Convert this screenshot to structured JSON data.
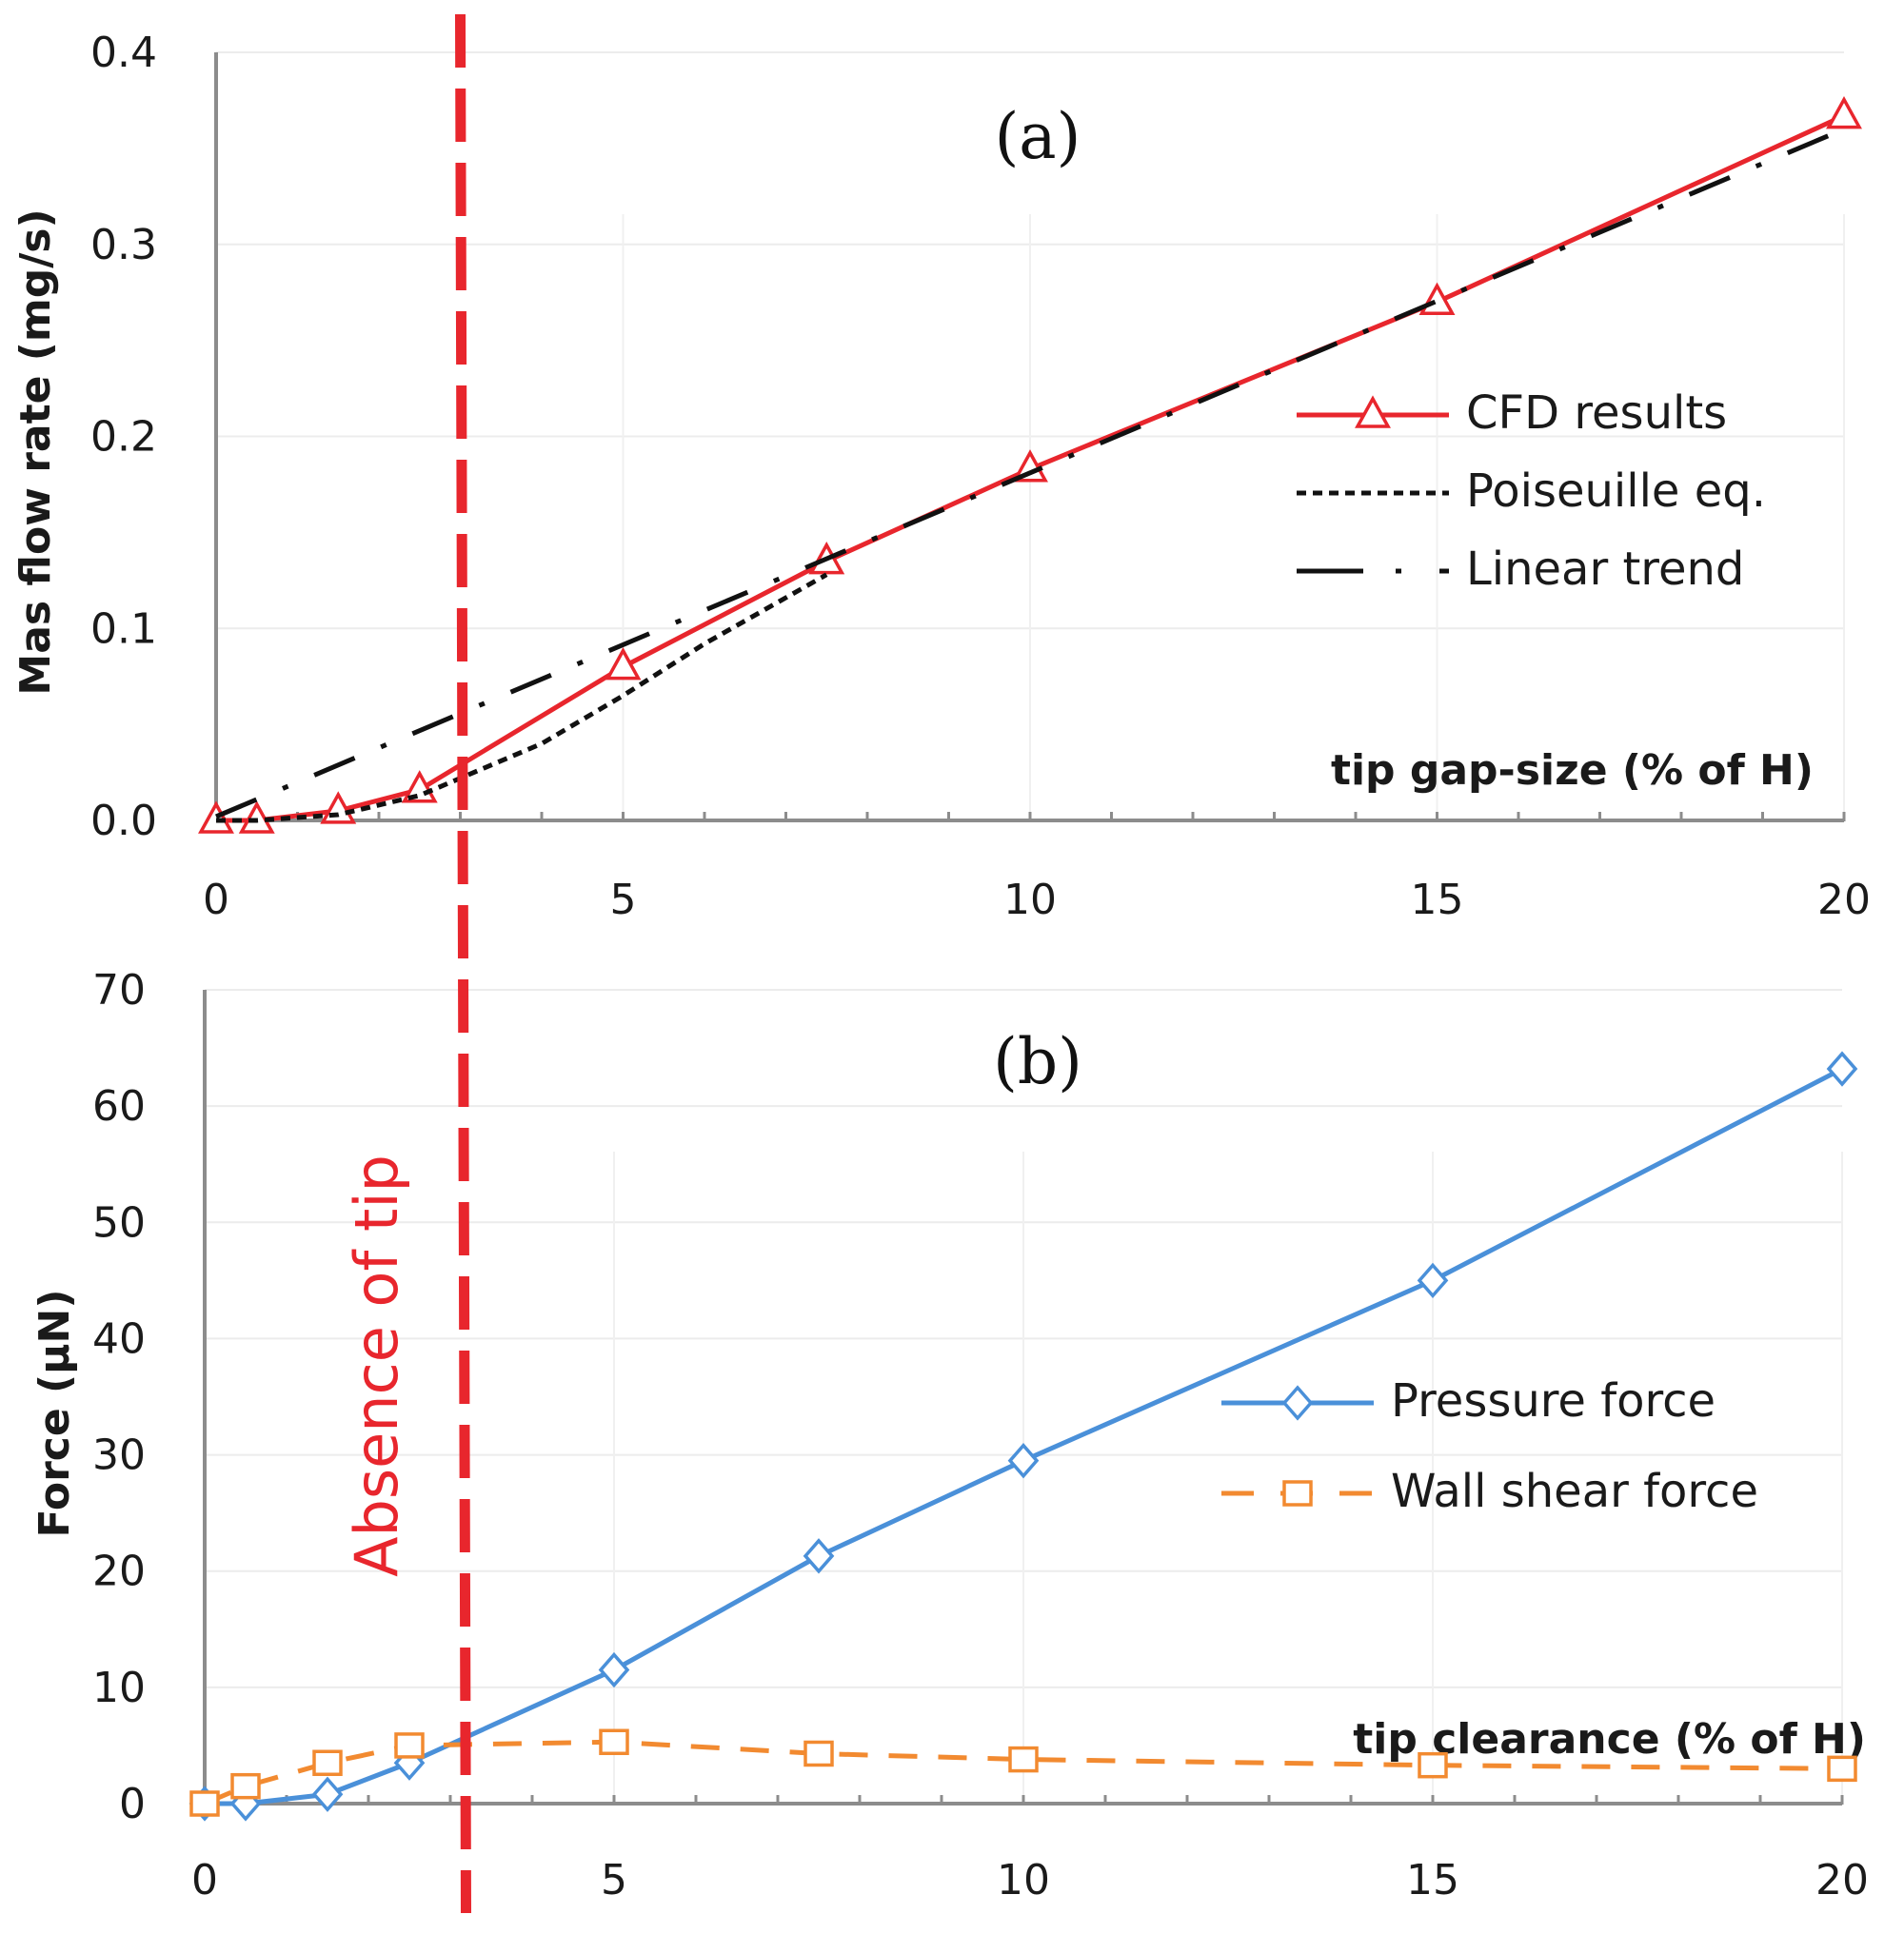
{
  "figure": {
    "absence_label": "Absence of tip",
    "absence_x": 3.0,
    "absence_color": "#e8262d"
  },
  "chart_data": [
    {
      "type": "line",
      "panel_label": "(a)",
      "title": "",
      "xlabel": "tip gap-size (% of H)",
      "ylabel": "Mas flow rate (mg/s)",
      "xlim": [
        0,
        20
      ],
      "ylim": [
        0,
        0.4
      ],
      "x_ticks": [
        0,
        5,
        10,
        15,
        20
      ],
      "x_tick_labels": [
        "0",
        "5",
        "10",
        "15",
        "20"
      ],
      "y_ticks": [
        0,
        0.1,
        0.2,
        0.3,
        0.4
      ],
      "y_tick_labels": [
        "0.0",
        "0.1",
        "0.2",
        "0.3",
        "0.4"
      ],
      "grid": true,
      "legend_position": "right",
      "series": [
        {
          "name": "CFD results",
          "color": "#e8262d",
          "style": "solid",
          "marker": "triangle",
          "x": [
            0,
            0.5,
            1.5,
            2.5,
            5,
            7.5,
            10,
            15,
            20
          ],
          "y": [
            0.0,
            0.0,
            0.005,
            0.016,
            0.08,
            0.135,
            0.183,
            0.27,
            0.367
          ]
        },
        {
          "name": "Poiseuille eq.",
          "color": "#111111",
          "style": "dotted",
          "marker": "none",
          "x": [
            0,
            0.5,
            1.5,
            2.5,
            3,
            4,
            5,
            6,
            7.5
          ],
          "y": [
            0.0,
            0.0,
            0.003,
            0.013,
            0.022,
            0.04,
            0.065,
            0.092,
            0.128
          ]
        },
        {
          "name": "Linear trend",
          "color": "#111111",
          "style": "dashdot",
          "marker": "none",
          "x": [
            0,
            20
          ],
          "y": [
            0.002,
            0.36
          ]
        }
      ]
    },
    {
      "type": "line",
      "panel_label": "(b)",
      "title": "",
      "xlabel": "tip clearance (% of H)",
      "ylabel": "Force (μN)",
      "xlim": [
        0,
        20
      ],
      "ylim": [
        0,
        70
      ],
      "x_ticks": [
        0,
        5,
        10,
        15,
        20
      ],
      "x_tick_labels": [
        "0",
        "5",
        "10",
        "15",
        "20"
      ],
      "y_ticks": [
        0,
        10,
        20,
        30,
        40,
        50,
        60,
        70
      ],
      "y_tick_labels": [
        "0",
        "10",
        "20",
        "30",
        "40",
        "50",
        "60",
        "70"
      ],
      "grid": true,
      "legend_position": "right",
      "series": [
        {
          "name": "Pressure force",
          "color": "#4a90d9",
          "style": "solid",
          "marker": "diamond",
          "x": [
            0,
            0.5,
            1.5,
            2.5,
            5,
            7.5,
            10,
            15,
            20
          ],
          "y": [
            0.0,
            0.0,
            0.8,
            3.5,
            11.5,
            21.3,
            29.5,
            45.0,
            63.2
          ]
        },
        {
          "name": "Wall shear force",
          "color": "#f28a30",
          "style": "dashed",
          "marker": "square",
          "x": [
            0,
            0.5,
            1.5,
            2.5,
            5,
            7.5,
            10,
            15,
            20
          ],
          "y": [
            0.0,
            1.5,
            3.5,
            5.0,
            5.3,
            4.3,
            3.8,
            3.3,
            3.0
          ]
        }
      ]
    }
  ]
}
